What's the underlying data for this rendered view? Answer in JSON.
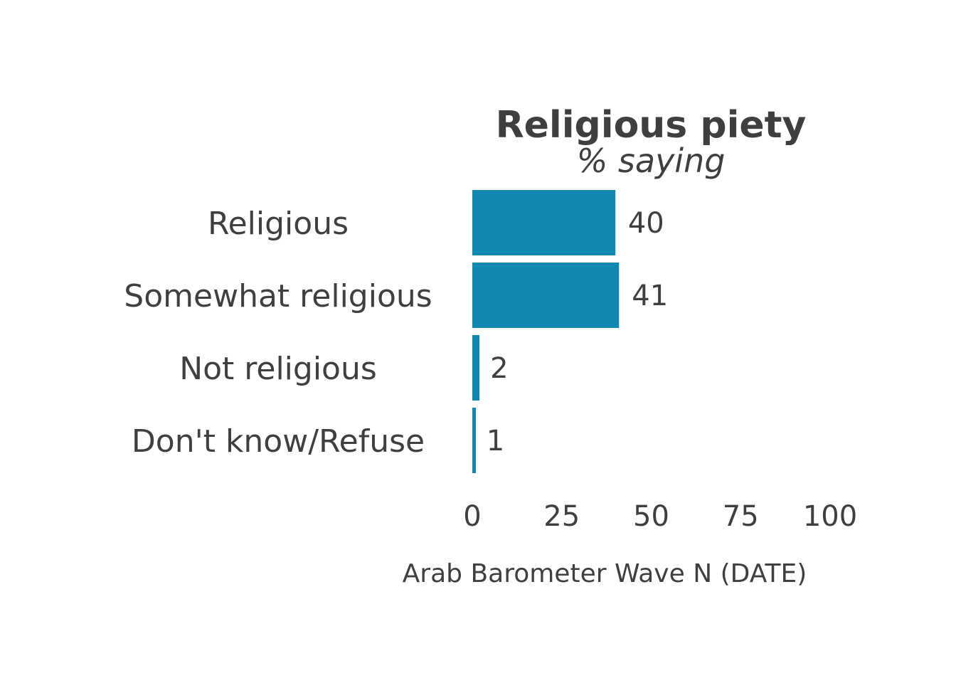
{
  "chart_data": {
    "type": "bar",
    "orientation": "horizontal",
    "title": "Religious piety",
    "subtitle": "% saying",
    "categories": [
      "Religious",
      "Somewhat religious",
      "Not religious",
      "Don't know/Refuse"
    ],
    "values": [
      40,
      41,
      2,
      1
    ],
    "value_labels": [
      "40",
      "41",
      "2",
      "1"
    ],
    "xlabel": "Arab Barometer Wave N (DATE)",
    "ylabel": "",
    "xlim": [
      0,
      100
    ],
    "xticks": [
      0,
      25,
      50,
      75,
      100
    ],
    "xtick_labels": [
      "0",
      "25",
      "50",
      "75",
      "100"
    ],
    "grid": false,
    "bar_color": "#1287b1",
    "text_color": "#3f3f3f"
  }
}
